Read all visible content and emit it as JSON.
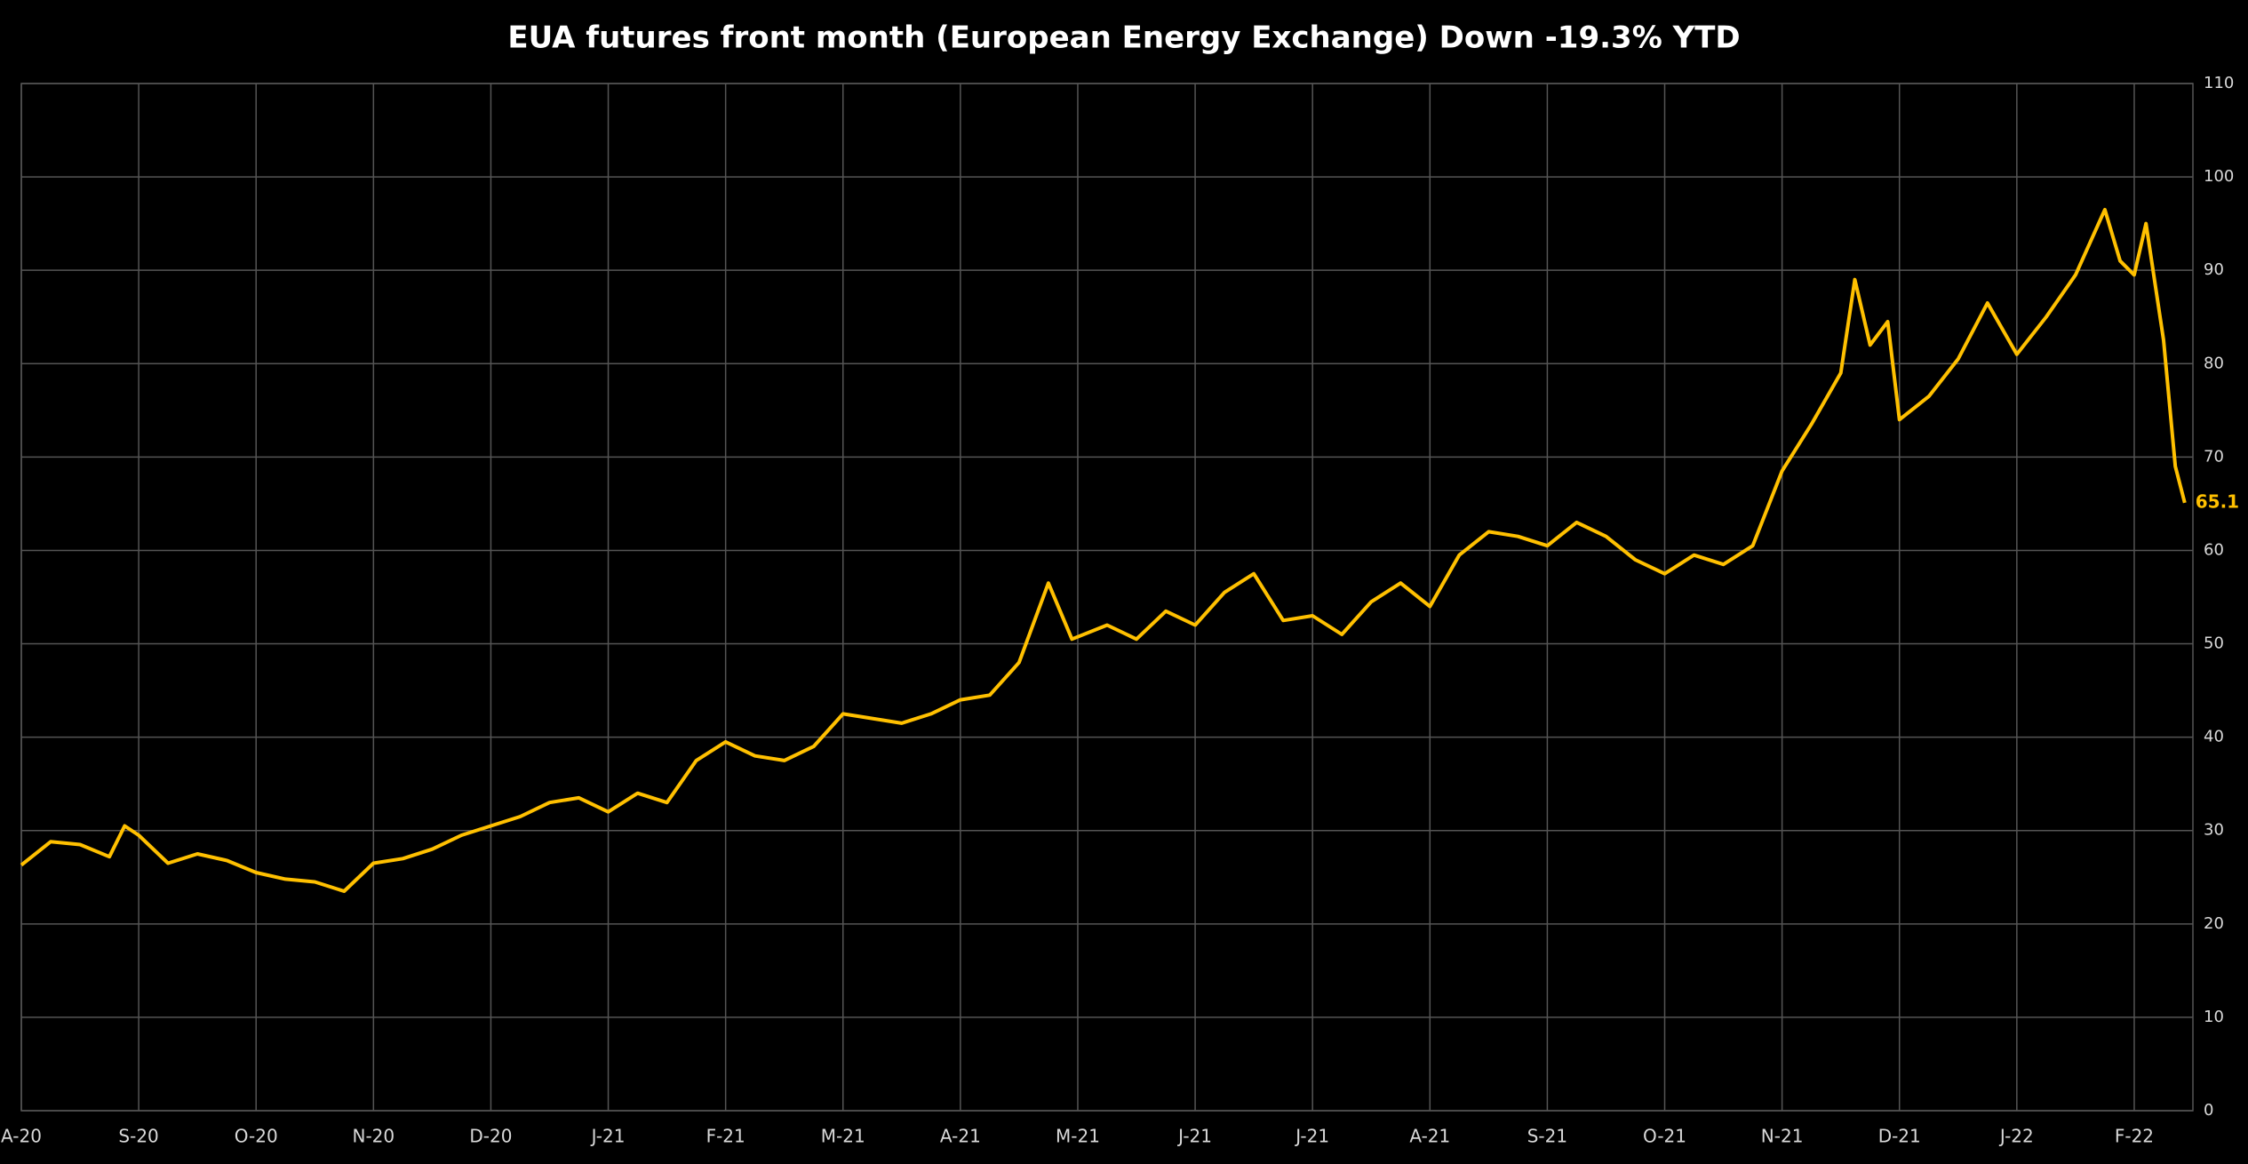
{
  "chart_data": {
    "type": "line",
    "title": "EUA futures front month (European Energy Exchange) Down -19.3% YTD",
    "xlim": [
      0,
      18.5
    ],
    "xticks": [
      {
        "value": 0,
        "label": "A-20"
      },
      {
        "value": 1,
        "label": "S-20"
      },
      {
        "value": 2,
        "label": "O-20"
      },
      {
        "value": 3,
        "label": "N-20"
      },
      {
        "value": 4,
        "label": "D-20"
      },
      {
        "value": 5,
        "label": "J-21"
      },
      {
        "value": 6,
        "label": "F-21"
      },
      {
        "value": 7,
        "label": "M-21"
      },
      {
        "value": 8,
        "label": "A-21"
      },
      {
        "value": 9,
        "label": "M-21"
      },
      {
        "value": 10,
        "label": "J-21"
      },
      {
        "value": 11,
        "label": "J-21"
      },
      {
        "value": 12,
        "label": "A-21"
      },
      {
        "value": 13,
        "label": "S-21"
      },
      {
        "value": 14,
        "label": "O-21"
      },
      {
        "value": 15,
        "label": "N-21"
      },
      {
        "value": 16,
        "label": "D-21"
      },
      {
        "value": 17,
        "label": "J-22"
      },
      {
        "value": 18,
        "label": "F-22"
      }
    ],
    "ylim": [
      0,
      110
    ],
    "yticks": [
      0,
      10,
      20,
      30,
      40,
      50,
      60,
      70,
      80,
      90,
      100,
      110
    ],
    "grid": true,
    "x": [
      0,
      0.25,
      0.5,
      0.75,
      0.88,
      1,
      1.25,
      1.5,
      1.75,
      2,
      2.25,
      2.5,
      2.75,
      3,
      3.25,
      3.5,
      3.75,
      4,
      4.25,
      4.5,
      4.75,
      5,
      5.25,
      5.5,
      5.75,
      6,
      6.25,
      6.5,
      6.75,
      7,
      7.25,
      7.5,
      7.75,
      8,
      8.25,
      8.5,
      8.75,
      8.95,
      9.25,
      9.5,
      9.75,
      10,
      10.25,
      10.5,
      10.75,
      11,
      11.25,
      11.5,
      11.75,
      12,
      12.25,
      12.5,
      12.75,
      13,
      13.25,
      13.5,
      13.75,
      14,
      14.25,
      14.5,
      14.75,
      15,
      15.25,
      15.5,
      15.62,
      15.75,
      15.9,
      16,
      16.25,
      16.5,
      16.75,
      17,
      17.25,
      17.5,
      17.75,
      17.88,
      18,
      18.1,
      18.25,
      18.35,
      18.43
    ],
    "series": [
      {
        "name": "EUA futures front month",
        "color": "#ffc000",
        "values": [
          26.3,
          28.8,
          28.5,
          27.2,
          30.5,
          29.5,
          26.5,
          27.5,
          26.8,
          25.5,
          24.8,
          24.5,
          23.5,
          26.5,
          27.0,
          28.0,
          29.5,
          30.5,
          31.5,
          33.0,
          33.5,
          32.0,
          34.0,
          33.0,
          37.5,
          39.5,
          38.0,
          37.5,
          39.0,
          42.5,
          42.0,
          41.5,
          42.5,
          44.0,
          44.5,
          48.0,
          56.5,
          50.5,
          52.0,
          50.5,
          53.5,
          52.0,
          55.5,
          57.5,
          52.5,
          53.0,
          51.0,
          54.5,
          56.5,
          54.0,
          59.5,
          62.0,
          61.5,
          60.5,
          63.0,
          61.5,
          59.0,
          57.5,
          59.5,
          58.5,
          60.5,
          68.5,
          73.5,
          79.0,
          89.0,
          82.0,
          84.5,
          74.0,
          76.5,
          80.5,
          86.5,
          81.0,
          85.0,
          89.5,
          96.5,
          91.0,
          89.5,
          95.0,
          82.5,
          69.0,
          65.1
        ]
      }
    ]
  }
}
